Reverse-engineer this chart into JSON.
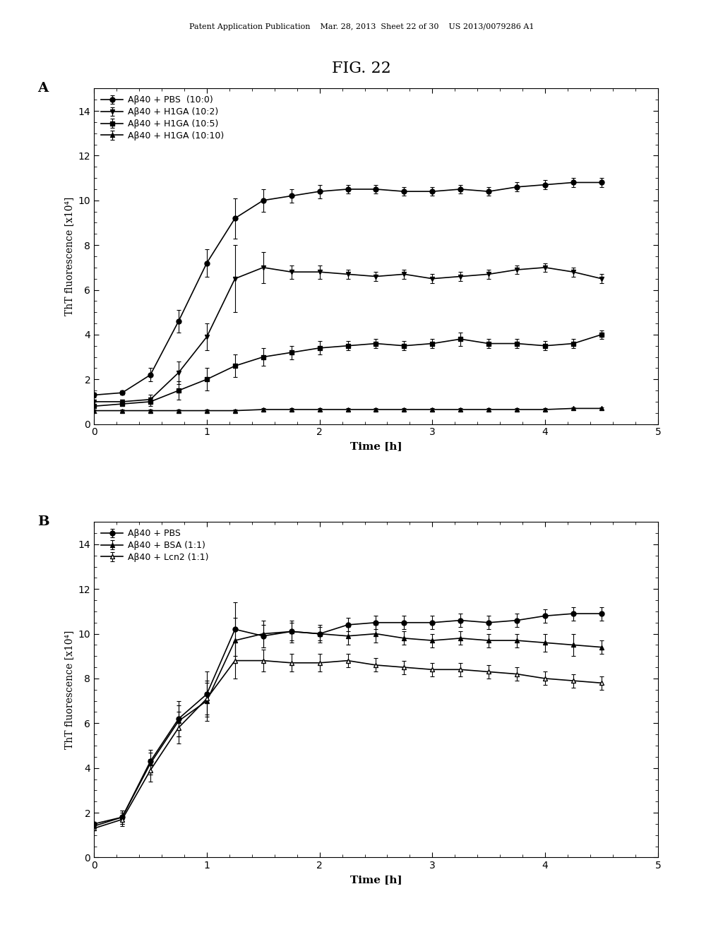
{
  "title": "FIG. 22",
  "header_text": "Patent Application Publication    Mar. 28, 2013  Sheet 22 of 30    US 2013/0079286 A1",
  "panel_A": {
    "label": "A",
    "ylabel": "ThT fluorescence [x10⁴]",
    "xlabel": "Time [h]",
    "xlim": [
      0,
      5
    ],
    "ylim": [
      0,
      15
    ],
    "yticks": [
      0,
      2,
      4,
      6,
      8,
      10,
      12,
      14
    ],
    "xticks": [
      0,
      1,
      2,
      3,
      4,
      5
    ],
    "series": [
      {
        "label": "Aβ40 + PBS  (10:0)",
        "marker": "o",
        "fillstyle": "full",
        "color": "#000000",
        "x": [
          0,
          0.25,
          0.5,
          0.75,
          1.0,
          1.25,
          1.5,
          1.75,
          2.0,
          2.25,
          2.5,
          2.75,
          3.0,
          3.25,
          3.5,
          3.75,
          4.0,
          4.25,
          4.5
        ],
        "y": [
          1.3,
          1.4,
          2.2,
          4.6,
          7.2,
          9.2,
          10.0,
          10.2,
          10.4,
          10.5,
          10.5,
          10.4,
          10.4,
          10.5,
          10.4,
          10.6,
          10.7,
          10.8,
          10.8
        ],
        "yerr": [
          0.1,
          0.1,
          0.3,
          0.5,
          0.6,
          0.9,
          0.5,
          0.3,
          0.3,
          0.2,
          0.2,
          0.2,
          0.2,
          0.2,
          0.2,
          0.2,
          0.2,
          0.2,
          0.2
        ]
      },
      {
        "label": "Aβ40 + H1GA (10:2)",
        "marker": "v",
        "fillstyle": "full",
        "color": "#000000",
        "x": [
          0,
          0.25,
          0.5,
          0.75,
          1.0,
          1.25,
          1.5,
          1.75,
          2.0,
          2.25,
          2.5,
          2.75,
          3.0,
          3.25,
          3.5,
          3.75,
          4.0,
          4.25,
          4.5
        ],
        "y": [
          1.0,
          1.0,
          1.1,
          2.3,
          3.9,
          6.5,
          7.0,
          6.8,
          6.8,
          6.7,
          6.6,
          6.7,
          6.5,
          6.6,
          6.7,
          6.9,
          7.0,
          6.8,
          6.5
        ],
        "yerr": [
          0.1,
          0.1,
          0.2,
          0.5,
          0.6,
          1.5,
          0.7,
          0.3,
          0.3,
          0.2,
          0.2,
          0.2,
          0.2,
          0.2,
          0.2,
          0.2,
          0.2,
          0.2,
          0.2
        ]
      },
      {
        "label": "Aβ40 + H1GA (10:5)",
        "marker": "s",
        "fillstyle": "full",
        "color": "#000000",
        "x": [
          0,
          0.25,
          0.5,
          0.75,
          1.0,
          1.25,
          1.5,
          1.75,
          2.0,
          2.25,
          2.5,
          2.75,
          3.0,
          3.25,
          3.5,
          3.75,
          4.0,
          4.25,
          4.5
        ],
        "y": [
          0.8,
          0.9,
          1.0,
          1.5,
          2.0,
          2.6,
          3.0,
          3.2,
          3.4,
          3.5,
          3.6,
          3.5,
          3.6,
          3.8,
          3.6,
          3.6,
          3.5,
          3.6,
          4.0
        ],
        "yerr": [
          0.1,
          0.1,
          0.2,
          0.4,
          0.5,
          0.5,
          0.4,
          0.3,
          0.3,
          0.2,
          0.2,
          0.2,
          0.2,
          0.3,
          0.2,
          0.2,
          0.2,
          0.2,
          0.2
        ]
      },
      {
        "label": "Aβ40 + H1GA (10:10)",
        "marker": "^",
        "fillstyle": "full",
        "color": "#000000",
        "x": [
          0,
          0.25,
          0.5,
          0.75,
          1.0,
          1.25,
          1.5,
          1.75,
          2.0,
          2.25,
          2.5,
          2.75,
          3.0,
          3.25,
          3.5,
          3.75,
          4.0,
          4.25,
          4.5
        ],
        "y": [
          0.6,
          0.6,
          0.6,
          0.6,
          0.6,
          0.6,
          0.65,
          0.65,
          0.65,
          0.65,
          0.65,
          0.65,
          0.65,
          0.65,
          0.65,
          0.65,
          0.65,
          0.7,
          0.7
        ],
        "yerr": [
          0.05,
          0.05,
          0.05,
          0.05,
          0.05,
          0.05,
          0.05,
          0.05,
          0.05,
          0.05,
          0.05,
          0.05,
          0.05,
          0.05,
          0.05,
          0.05,
          0.05,
          0.05,
          0.05
        ]
      }
    ]
  },
  "panel_B": {
    "label": "B",
    "ylabel": "ThT fluorescence [x10⁴]",
    "xlabel": "Time [h]",
    "xlim": [
      0,
      5
    ],
    "ylim": [
      0,
      15
    ],
    "yticks": [
      0,
      2,
      4,
      6,
      8,
      10,
      12,
      14
    ],
    "xticks": [
      0,
      1,
      2,
      3,
      4,
      5
    ],
    "series": [
      {
        "label": "Aβ40 + PBS",
        "marker": "o",
        "fillstyle": "full",
        "color": "#000000",
        "x": [
          0,
          0.25,
          0.5,
          0.75,
          1.0,
          1.25,
          1.5,
          1.75,
          2.0,
          2.25,
          2.5,
          2.75,
          3.0,
          3.25,
          3.5,
          3.75,
          4.0,
          4.25,
          4.5
        ],
        "y": [
          1.5,
          1.8,
          4.3,
          6.2,
          7.3,
          10.2,
          9.9,
          10.1,
          10.0,
          10.4,
          10.5,
          10.5,
          10.5,
          10.6,
          10.5,
          10.6,
          10.8,
          10.9,
          10.9
        ],
        "yerr": [
          0.1,
          0.3,
          0.5,
          0.8,
          1.0,
          1.2,
          0.5,
          0.4,
          0.3,
          0.3,
          0.3,
          0.3,
          0.3,
          0.3,
          0.3,
          0.3,
          0.3,
          0.3,
          0.3
        ]
      },
      {
        "label": "Aβ40 + BSA (1:1)",
        "marker": "^",
        "fillstyle": "full",
        "color": "#000000",
        "x": [
          0,
          0.25,
          0.5,
          0.75,
          1.0,
          1.25,
          1.5,
          1.75,
          2.0,
          2.25,
          2.5,
          2.75,
          3.0,
          3.25,
          3.5,
          3.75,
          4.0,
          4.25,
          4.5
        ],
        "y": [
          1.4,
          1.8,
          4.2,
          6.1,
          7.0,
          9.7,
          10.0,
          10.1,
          10.0,
          9.9,
          10.0,
          9.8,
          9.7,
          9.8,
          9.7,
          9.7,
          9.6,
          9.5,
          9.4
        ],
        "yerr": [
          0.1,
          0.3,
          0.5,
          0.7,
          0.9,
          1.0,
          0.6,
          0.5,
          0.4,
          0.4,
          0.4,
          0.3,
          0.3,
          0.3,
          0.3,
          0.3,
          0.4,
          0.5,
          0.3
        ]
      },
      {
        "label": "Aβ40 + Lcn2 (1:1)",
        "marker": "^",
        "fillstyle": "none",
        "color": "#000000",
        "x": [
          0,
          0.25,
          0.5,
          0.75,
          1.0,
          1.25,
          1.5,
          1.75,
          2.0,
          2.25,
          2.5,
          2.75,
          3.0,
          3.25,
          3.5,
          3.75,
          4.0,
          4.25,
          4.5
        ],
        "y": [
          1.3,
          1.7,
          3.9,
          5.8,
          7.1,
          8.8,
          8.8,
          8.7,
          8.7,
          8.8,
          8.6,
          8.5,
          8.4,
          8.4,
          8.3,
          8.2,
          8.0,
          7.9,
          7.8
        ],
        "yerr": [
          0.1,
          0.3,
          0.5,
          0.7,
          0.7,
          0.8,
          0.5,
          0.4,
          0.4,
          0.3,
          0.3,
          0.3,
          0.3,
          0.3,
          0.3,
          0.3,
          0.3,
          0.3,
          0.3
        ]
      }
    ]
  }
}
